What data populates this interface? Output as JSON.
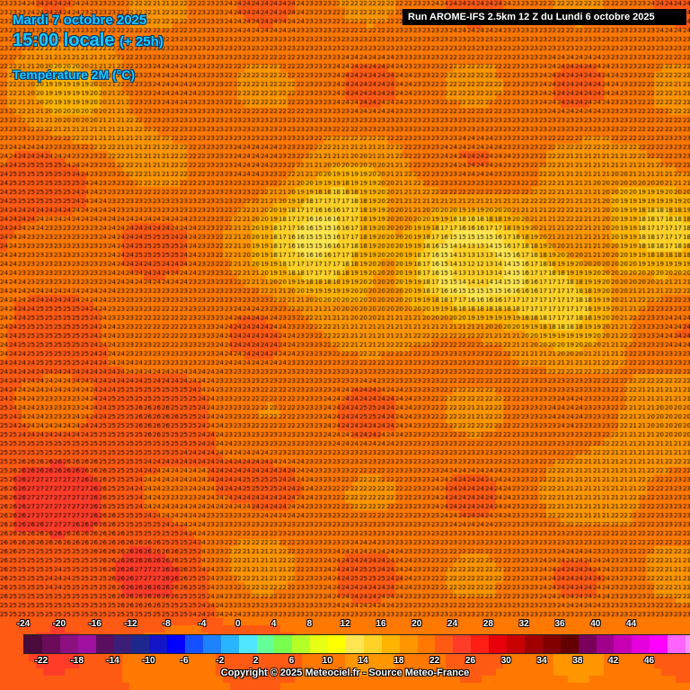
{
  "header": {
    "date": "Mardi 7 octobre 2025",
    "time": "15:00 locale",
    "lead": "(+ 25h)",
    "variable": "Température 2M (°C)",
    "run": "Run AROME-IFS 2.5km 12 Z du Lundi 6 octobre 2025"
  },
  "legend": {
    "top_labels": [
      "-24",
      "-20",
      "-16",
      "-12",
      "-8",
      "-4",
      "0",
      "4",
      "8",
      "12",
      "16",
      "20",
      "24",
      "28",
      "32",
      "36",
      "40",
      "44"
    ],
    "bottom_labels": [
      "-22",
      "-18",
      "-14",
      "-10",
      "-6",
      "-2",
      "2",
      "6",
      "10",
      "14",
      "18",
      "22",
      "26",
      "30",
      "34",
      "38",
      "42",
      "46"
    ],
    "colors": [
      "#4b0a3c",
      "#6a0c5a",
      "#8c1080",
      "#a010a0",
      "#5a0e60",
      "#3c1e78",
      "#1e288c",
      "#1414c8",
      "#0000ff",
      "#1450ff",
      "#1e82ff",
      "#28b4ff",
      "#50e6ff",
      "#64ff96",
      "#78ff50",
      "#b4ff28",
      "#e6ff14",
      "#ffff00",
      "#ffe650",
      "#ffd228",
      "#ffb400",
      "#ff9600",
      "#ff7800",
      "#ff5a14",
      "#ff3c28",
      "#ff1e14",
      "#e6000a",
      "#c80000",
      "#a00000",
      "#820000",
      "#640000",
      "#78005a",
      "#a0008c",
      "#c800b4",
      "#e600dc",
      "#ff00ff",
      "#ff64ff",
      "#ff96ff"
    ],
    "copyright": "Copyright © 2025 Meteociel.fr - Source Meteo-France"
  }
}
